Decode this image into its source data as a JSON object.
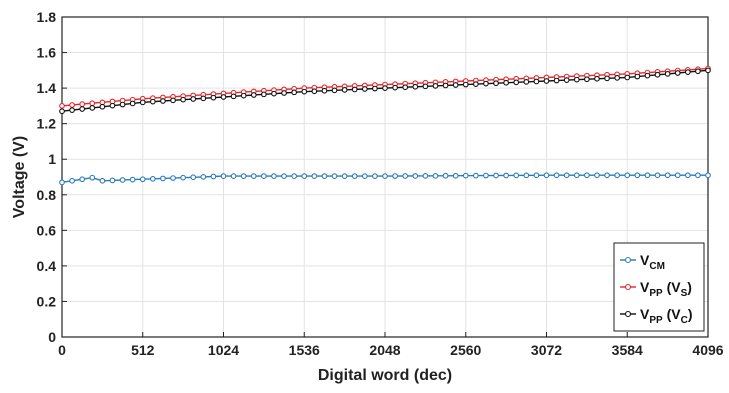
{
  "chart_data": {
    "type": "line",
    "xlabel": "Digital word (dec)",
    "ylabel": "Voltage (V)",
    "xlim": [
      0,
      4096
    ],
    "ylim": [
      0,
      1.8
    ],
    "x_ticks": [
      "0",
      "512",
      "1024",
      "1536",
      "2048",
      "2560",
      "3072",
      "3584",
      "4096"
    ],
    "y_ticks": [
      "0",
      "0.2",
      "0.4",
      "0.6",
      "0.8",
      "1",
      "1.2",
      "1.4",
      "1.6",
      "1.8"
    ],
    "grid": true,
    "legend_position": "bottom-right",
    "series": [
      {
        "name_main": "V",
        "name_sub": "CM",
        "name_rest": "",
        "name_rest_sub": "",
        "name_rest_end": "",
        "color": "#2b7bba",
        "marker": "circle",
        "x": [
          0,
          1024,
          2048,
          3072,
          4096
        ],
        "y": [
          0.87,
          0.905,
          0.905,
          0.91,
          0.91
        ]
      },
      {
        "name_main": "V",
        "name_sub": "PP",
        "name_rest": " (V",
        "name_rest_sub": "S",
        "name_rest_end": ")",
        "color": "#e8262a",
        "marker": "circle",
        "x": [
          0,
          512,
          1024,
          1536,
          2048,
          2560,
          3072,
          3584,
          4096
        ],
        "y": [
          1.3,
          1.34,
          1.37,
          1.4,
          1.42,
          1.44,
          1.46,
          1.48,
          1.51
        ]
      },
      {
        "name_main": "V",
        "name_sub": "PP",
        "name_rest": " (V",
        "name_rest_sub": "C",
        "name_rest_end": ")",
        "color": "#111111",
        "marker": "circle",
        "x": [
          0,
          512,
          1024,
          1536,
          2048,
          2560,
          3072,
          3584,
          4096
        ],
        "y": [
          1.27,
          1.32,
          1.35,
          1.38,
          1.4,
          1.42,
          1.44,
          1.46,
          1.5
        ]
      }
    ]
  }
}
